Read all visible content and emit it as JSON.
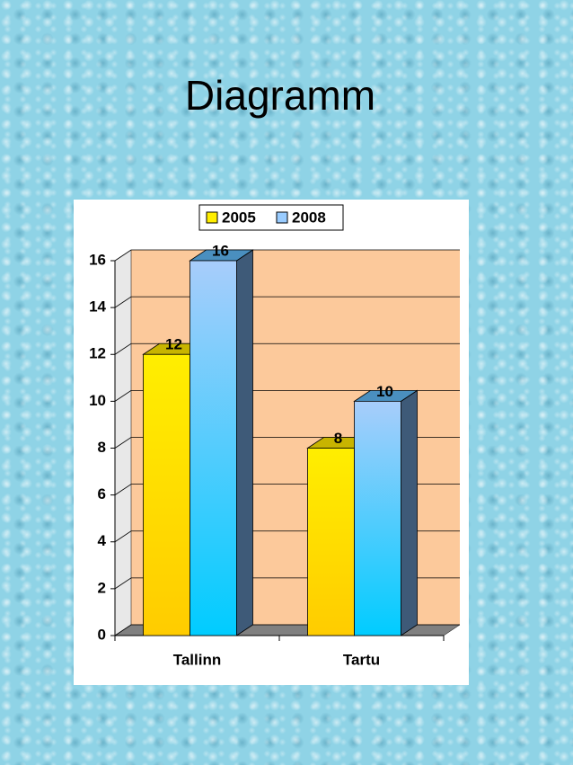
{
  "chart_data": {
    "type": "bar",
    "title": "Diagramm",
    "categories": [
      "Tallinn",
      "Tartu"
    ],
    "series": [
      {
        "name": "2005",
        "color": "#ffee00",
        "values": [
          12,
          8
        ]
      },
      {
        "name": "2008",
        "color": "#99ccff",
        "values": [
          16,
          10
        ]
      }
    ],
    "ylim": [
      0,
      16
    ],
    "yticks": [
      0,
      2,
      4,
      6,
      8,
      10,
      12,
      14,
      16
    ],
    "grid": true,
    "legend": "top"
  }
}
